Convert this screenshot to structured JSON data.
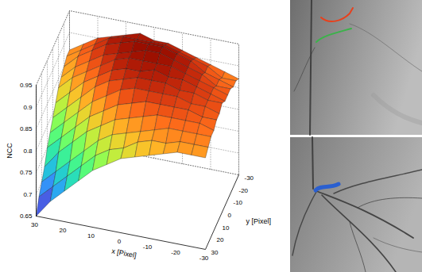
{
  "chart_data": {
    "type": "surface",
    "xlabel": "x [Pixel]",
    "ylabel": "y [Pixel]",
    "zlabel": "NCC",
    "grid": true,
    "xlim": [
      -30,
      30
    ],
    "ylim": [
      -30,
      30
    ],
    "zlim": [
      0.65,
      0.95
    ],
    "xticks": [
      30,
      20,
      10,
      0,
      -10,
      -20,
      -30
    ],
    "yticks": [
      -30,
      -20,
      -10,
      0,
      10,
      20,
      30
    ],
    "zticks": [
      0.65,
      0.7,
      0.75,
      0.8,
      0.85,
      0.9,
      0.95
    ],
    "x": [
      -30,
      -25,
      -20,
      -15,
      -10,
      -5,
      0,
      5,
      10,
      15,
      20,
      25,
      30
    ],
    "y": [
      -30,
      -25,
      -20,
      -15,
      -10,
      -5,
      0,
      5,
      10,
      15,
      20,
      25,
      30
    ],
    "values": [
      [
        0.87,
        0.88,
        0.89,
        0.9,
        0.91,
        0.92,
        0.92,
        0.93,
        0.92,
        0.91,
        0.9,
        0.88,
        0.86
      ],
      [
        0.88,
        0.88,
        0.9,
        0.91,
        0.92,
        0.93,
        0.93,
        0.93,
        0.93,
        0.92,
        0.9,
        0.88,
        0.86
      ],
      [
        0.88,
        0.89,
        0.9,
        0.92,
        0.93,
        0.94,
        0.94,
        0.94,
        0.93,
        0.92,
        0.9,
        0.88,
        0.85
      ],
      [
        0.89,
        0.89,
        0.91,
        0.92,
        0.93,
        0.94,
        0.94,
        0.93,
        0.92,
        0.91,
        0.89,
        0.87,
        0.84
      ],
      [
        0.89,
        0.9,
        0.91,
        0.92,
        0.93,
        0.93,
        0.93,
        0.93,
        0.92,
        0.9,
        0.88,
        0.86,
        0.83
      ],
      [
        0.89,
        0.9,
        0.91,
        0.92,
        0.92,
        0.93,
        0.92,
        0.92,
        0.91,
        0.89,
        0.87,
        0.84,
        0.81
      ],
      [
        0.9,
        0.9,
        0.91,
        0.91,
        0.92,
        0.92,
        0.92,
        0.91,
        0.9,
        0.88,
        0.85,
        0.82,
        0.79
      ],
      [
        0.89,
        0.9,
        0.9,
        0.91,
        0.91,
        0.91,
        0.91,
        0.9,
        0.88,
        0.86,
        0.83,
        0.8,
        0.77
      ],
      [
        0.89,
        0.89,
        0.9,
        0.9,
        0.9,
        0.9,
        0.89,
        0.88,
        0.86,
        0.84,
        0.81,
        0.78,
        0.75
      ],
      [
        0.88,
        0.89,
        0.89,
        0.89,
        0.89,
        0.88,
        0.87,
        0.86,
        0.84,
        0.82,
        0.79,
        0.76,
        0.72
      ],
      [
        0.88,
        0.88,
        0.88,
        0.88,
        0.87,
        0.86,
        0.85,
        0.84,
        0.82,
        0.79,
        0.76,
        0.73,
        0.7
      ],
      [
        0.87,
        0.87,
        0.87,
        0.86,
        0.86,
        0.85,
        0.83,
        0.82,
        0.8,
        0.77,
        0.74,
        0.71,
        0.68
      ],
      [
        0.86,
        0.86,
        0.86,
        0.85,
        0.84,
        0.83,
        0.82,
        0.8,
        0.78,
        0.75,
        0.72,
        0.69,
        0.65
      ]
    ]
  }
}
